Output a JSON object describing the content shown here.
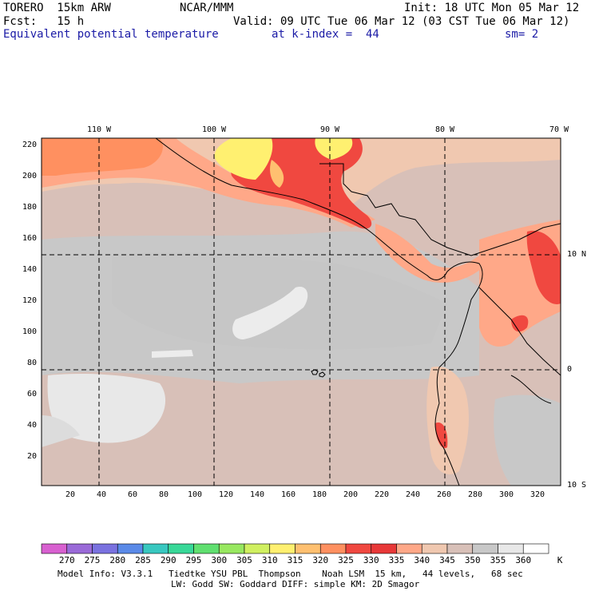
{
  "header": {
    "model": "TORERO  15km ARW",
    "center": "NCAR/MMM",
    "init": "Init: 18 UTC Mon 05 Mar 12",
    "fcst": "Fcst:   15 h",
    "valid": "Valid: 09 UTC Tue 06 Mar 12 (03 CST Tue 06 Mar 12)",
    "field": "Equivalent potential temperature",
    "level": "at k-index =  44",
    "smooth": "sm= 2"
  },
  "map": {
    "lon_labels": [
      "110 W",
      "100 W",
      "90 W",
      "80 W",
      "70 W"
    ],
    "lat_labels": [
      "10 N",
      "0",
      "10 S"
    ],
    "x_ticks": [
      "20",
      "40",
      "60",
      "80",
      "100",
      "120",
      "140",
      "160",
      "180",
      "200",
      "220",
      "240",
      "260",
      "280",
      "300",
      "320"
    ],
    "y_ticks": [
      "220",
      "200",
      "180",
      "160",
      "140",
      "120",
      "100",
      "80",
      "60",
      "40",
      "20"
    ]
  },
  "colorbar": {
    "labels": [
      "270",
      "275",
      "280",
      "285",
      "290",
      "295",
      "300",
      "305",
      "310",
      "315",
      "320",
      "325",
      "330",
      "335",
      "340",
      "345",
      "350",
      "355",
      "360"
    ],
    "unit": "K",
    "colors": [
      "#d860d0",
      "#9a6ad8",
      "#7a72e0",
      "#5a8ae8",
      "#38c8c0",
      "#38d898",
      "#60e070",
      "#98e860",
      "#d0f060",
      "#fff070",
      "#ffc070",
      "#ff9060",
      "#f04840",
      "#e83838",
      "#ffa888",
      "#f0c8b0",
      "#d8c0b8",
      "#c8c8c8",
      "#e8e8e8",
      "#ffffff"
    ]
  },
  "footer": {
    "line1": "Model Info: V3.3.1   Tiedtke YSU PBL  Thompson    Noah LSM  15 km,   44 levels,   68 sec",
    "line2": "LW: Godd SW: Goddard DIFF: simple KM: 2D Smagor"
  }
}
